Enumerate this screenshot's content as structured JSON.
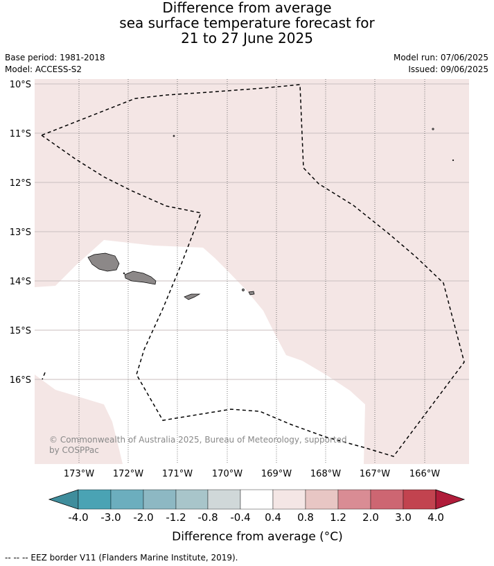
{
  "title": {
    "line1": "Difference from average",
    "line2": "sea surface temperature forecast for",
    "line3": "21 to 27 June 2025"
  },
  "meta": {
    "base_period": "Base period: 1981-2018",
    "model": "Model: ACCESS-S2",
    "model_run": "Model run: 07/06/2025",
    "issued": "Issued: 09/06/2025"
  },
  "map": {
    "lat_labels": [
      "10°S",
      "11°S",
      "12°S",
      "13°S",
      "14°S",
      "15°S",
      "16°S"
    ],
    "lon_labels": [
      "173°W",
      "172°W",
      "171°W",
      "170°W",
      "169°W",
      "168°W",
      "167°W",
      "166°W"
    ],
    "colors": {
      "anomaly_0_4_to_0_8": "#f4e6e5",
      "neutral": "#ffffff",
      "land": "#8c8888",
      "eez_border": "#000000",
      "gridline": "#c8bebe"
    },
    "copyright_line1": "© Commonwealth of Australia 2025, Bureau of Meteorology, supported",
    "copyright_line2": "by COSPPac"
  },
  "colorbar": {
    "tick_labels": [
      "-4.0",
      "-3.0",
      "-2.0",
      "-1.2",
      "-0.8",
      "-0.4",
      "0.4",
      "0.8",
      "1.2",
      "2.0",
      "3.0",
      "4.0"
    ],
    "colors": [
      "#3f8d9c",
      "#4aa3b4",
      "#6caebe",
      "#8db8c3",
      "#a8c5ca",
      "#d0d8d9",
      "#ffffff",
      "#f4e6e5",
      "#e8c6c4",
      "#d98c94",
      "#cd6672",
      "#c2434f",
      "#b01c3a"
    ],
    "title": "Difference from average (°C)"
  },
  "footnote": "--  --  -- EEZ border V11 (Flanders Marine Institute, 2019)."
}
